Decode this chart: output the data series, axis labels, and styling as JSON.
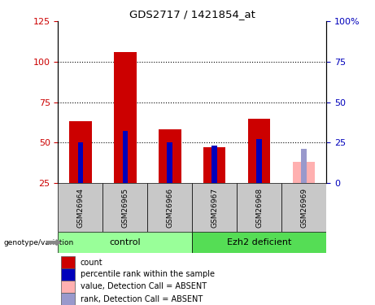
{
  "title": "GDS2717 / 1421854_at",
  "samples": [
    "GSM26964",
    "GSM26965",
    "GSM26966",
    "GSM26967",
    "GSM26968",
    "GSM26969"
  ],
  "count_values": [
    63,
    106,
    58,
    47,
    65,
    38
  ],
  "rank_values": [
    25,
    32,
    25,
    23,
    27,
    21
  ],
  "absent_flags": [
    false,
    false,
    false,
    false,
    false,
    true
  ],
  "ylim_left": [
    25,
    125
  ],
  "ylim_right": [
    0,
    100
  ],
  "yticks_left": [
    25,
    50,
    75,
    100,
    125
  ],
  "yticks_right": [
    0,
    25,
    50,
    75,
    100
  ],
  "ytick_labels_right": [
    "0",
    "25",
    "50",
    "75",
    "100%"
  ],
  "grid_lines": [
    50,
    75,
    100
  ],
  "color_red": "#cc0000",
  "color_blue": "#0000bb",
  "color_pink": "#ffb0b0",
  "color_lightblue": "#9999cc",
  "color_green_light": "#99ff99",
  "color_green_mid": "#55dd55",
  "color_gray": "#c8c8c8",
  "bar_width": 0.5,
  "rank_bar_width": 0.12,
  "legend_items": [
    {
      "label": "count",
      "color": "#cc0000"
    },
    {
      "label": "percentile rank within the sample",
      "color": "#0000bb"
    },
    {
      "label": "value, Detection Call = ABSENT",
      "color": "#ffb0b0"
    },
    {
      "label": "rank, Detection Call = ABSENT",
      "color": "#9999cc"
    }
  ]
}
